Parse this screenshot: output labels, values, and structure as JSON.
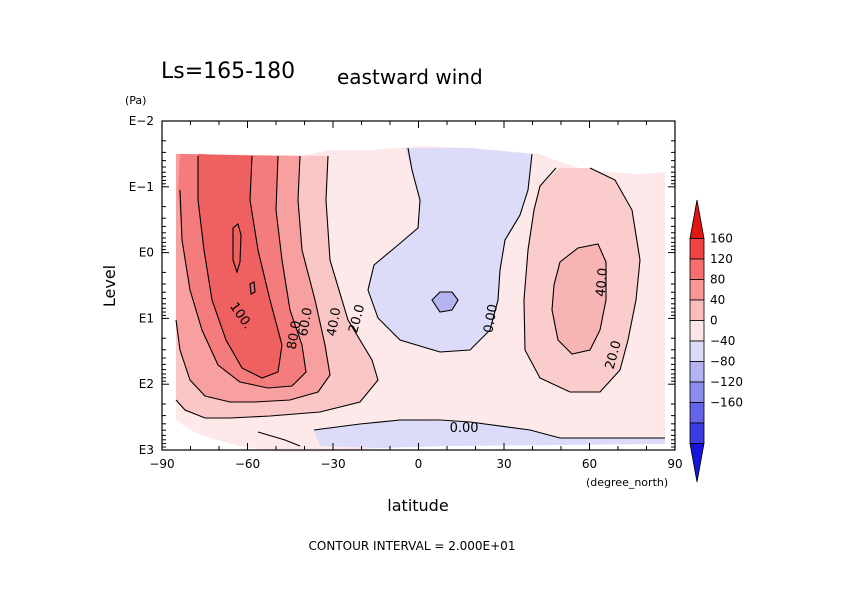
{
  "chart_data": {
    "type": "contour",
    "title": "Ls=165-180",
    "subtitle": "eastward wind",
    "xlabel": "latitude",
    "xunit": "(degree_north)",
    "ylabel": "Level",
    "yunit": "(Pa)",
    "xlim": [
      -90,
      90
    ],
    "x_ticks": [
      -90,
      -60,
      -30,
      0,
      30,
      60,
      90
    ],
    "x_tick_labels": [
      "−90",
      "−60",
      "−30",
      "0",
      "30",
      "60",
      "90"
    ],
    "y_scale": "log",
    "ylim_log10": [
      3,
      -2
    ],
    "y_ticks_log10": [
      -2,
      -1,
      0,
      1,
      2,
      3
    ],
    "y_tick_labels": [
      "E−2",
      "E−1",
      "E0",
      "E1",
      "E2",
      "E3"
    ],
    "contour_interval": 20,
    "footer": "CONTOUR INTERVAL = 2.000E+01",
    "contour_labels": [
      {
        "text": "100.",
        "lat": -62,
        "log10p": 0.95,
        "rot": 55
      },
      {
        "text": "80.0",
        "lat": -44,
        "log10p": 1.25,
        "rot": -80
      },
      {
        "text": "60.0",
        "lat": -40,
        "log10p": 1.05,
        "rot": -80
      },
      {
        "text": "40.0",
        "lat": -30,
        "log10p": 1.05,
        "rot": -80
      },
      {
        "text": "20.0",
        "lat": -22,
        "log10p": 1.0,
        "rot": -75
      },
      {
        "text": "0.00",
        "lat": 25,
        "log10p": 1.0,
        "rot": -80
      },
      {
        "text": "40.0",
        "lat": 64,
        "log10p": 0.45,
        "rot": -85
      },
      {
        "text": "20.0",
        "lat": 68,
        "log10p": 1.55,
        "rot": -75
      },
      {
        "text": "0.00",
        "lat": 16,
        "log10p": 2.65,
        "rot": 0
      }
    ],
    "colorbar": {
      "levels": [
        160,
        120,
        80,
        40,
        0,
        -40,
        -80,
        -120,
        -160
      ],
      "labels": [
        "160",
        "120",
        "80",
        "40",
        "0",
        "−40",
        "−80",
        "−120",
        "−160"
      ],
      "bands": [
        "#e31616",
        "#f04444",
        "#f66e6e",
        "#f99696",
        "#fbbcbc",
        "#fde6e6",
        "#dcdcfa",
        "#b4b4f2",
        "#8c8cec",
        "#6464e6",
        "#3c3ce0",
        "#1414dc"
      ]
    }
  }
}
